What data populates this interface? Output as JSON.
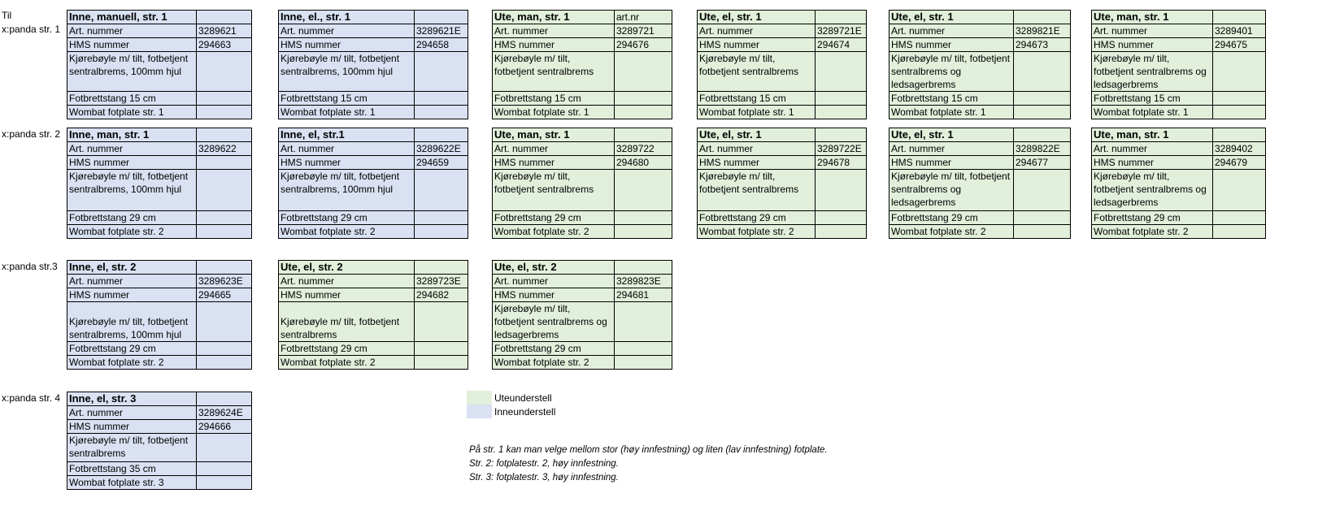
{
  "colors": {
    "inne": "#d9e1f2",
    "ute": "#e2efda"
  },
  "row_labels": {
    "til": "Til",
    "groups": [
      "x:panda str. 1",
      "x:panda str. 2",
      "x:panda str.3",
      "x:panda str. 4"
    ]
  },
  "groups": [
    {
      "cards": [
        {
          "type": "inne",
          "title": "Inne, manuell, str. 1",
          "title_value": "",
          "art_label": "Art. nummer",
          "art": "3289621",
          "hms_label": "HMS nummer",
          "hms": "294663",
          "desc": "Kjørebøyle m/ tilt, fotbetjent sentralbrems, 100mm hjul",
          "fot": "Fotbrettstang 15 cm",
          "wombat": "Wombat fotplate str. 1"
        },
        {
          "type": "inne",
          "title": "Inne, el., str. 1",
          "title_value": "",
          "art_label": "Art. nummer",
          "art": "3289621E",
          "hms_label": "HMS nummer",
          "hms": "294658",
          "desc": "Kjørebøyle m/ tilt, fotbetjent sentralbrems, 100mm hjul",
          "fot": "Fotbrettstang 15 cm",
          "wombat": "Wombat fotplate str. 1"
        },
        {
          "type": "ute",
          "title": "Ute, man, str. 1",
          "title_value": "art.nr",
          "art_label": "Art. nummer",
          "art": "3289721",
          "hms_label": "HMS nummer",
          "hms": "294676",
          "desc": "Kjørebøyle m/ tilt, fotbetjent sentralbrems",
          "fot": "Fotbrettstang 15 cm",
          "wombat": "Wombat fotplate str. 1"
        },
        {
          "type": "ute",
          "title": "Ute, el, str. 1",
          "title_value": "",
          "art_label": "Art. nummer",
          "art": "3289721E",
          "hms_label": "HMS nummer",
          "hms": "294674",
          "desc": "Kjørebøyle m/ tilt, fotbetjent sentralbrems",
          "fot": "Fotbrettstang 15 cm",
          "wombat": "Wombat fotplate str. 1"
        },
        {
          "type": "ute",
          "title": "Ute, el, str. 1",
          "title_value": "",
          "art_label": "Art. nummer",
          "art": "3289821E",
          "hms_label": "HMS nummer",
          "hms": "294673",
          "desc": "Kjørebøyle m/ tilt, fotbetjent sentralbrems og ledsagerbrems",
          "fot": "Fotbrettstang 15 cm",
          "wombat": "Wombat fotplate str. 1"
        },
        {
          "type": "ute",
          "title": "Ute, man, str. 1",
          "title_value": "",
          "art_label": "Art. nummer",
          "art": "3289401",
          "hms_label": "HMS nummer",
          "hms": "294675",
          "desc": "Kjørebøyle m/ tilt, fotbetjent sentralbrems og ledsagerbrems",
          "fot": "Fotbrettstang 15 cm",
          "wombat": "Wombat fotplate str. 1"
        }
      ]
    },
    {
      "cards": [
        {
          "type": "inne",
          "title": "Inne, man, str. 1",
          "title_value": "",
          "art_label": "Art. nummer",
          "art": "3289622",
          "hms_label": "HMS nummer",
          "hms": "",
          "desc": "Kjørebøyle m/ tilt, fotbetjent sentralbrems, 100mm hjul",
          "fot": "Fotbrettstang 29 cm",
          "wombat": "Wombat fotplate str. 2"
        },
        {
          "type": "inne",
          "title": "Inne, el, str.1",
          "title_value": "",
          "art_label": "Art. nummer",
          "art": "3289622E",
          "hms_label": "HMS nummer",
          "hms": "294659",
          "desc": "Kjørebøyle m/ tilt, fotbetjent sentralbrems, 100mm hjul",
          "fot": "Fotbrettstang 29 cm",
          "wombat": "Wombat fotplate str. 2"
        },
        {
          "type": "ute",
          "title": "Ute, man, str. 1",
          "title_value": "",
          "art_label": "Art. nummer",
          "art": "3289722",
          "hms_label": "HMS nummer",
          "hms": "294680",
          "desc": "Kjørebøyle m/ tilt, fotbetjent sentralbrems",
          "fot": "Fotbrettstang 29 cm",
          "wombat": "Wombat fotplate str. 2"
        },
        {
          "type": "ute",
          "title": "Ute, el, str. 1",
          "title_value": "",
          "art_label": "Art. nummer",
          "art": "3289722E",
          "hms_label": "HMS nummer",
          "hms": "294678",
          "desc": "Kjørebøyle m/ tilt, fotbetjent sentralbrems",
          "fot": "Fotbrettstang 29 cm",
          "wombat": "Wombat fotplate str. 2"
        },
        {
          "type": "ute",
          "title": "Ute, el, str. 1",
          "title_value": "",
          "art_label": "Art. nummer",
          "art": "3289822E",
          "hms_label": "HMS nummer",
          "hms": "294677",
          "desc": "Kjørebøyle m/ tilt, fotbetjent sentralbrems og ledsagerbrems",
          "fot": "Fotbrettstang 29 cm",
          "wombat": "Wombat fotplate str. 2"
        },
        {
          "type": "ute",
          "title": "Ute, man, str. 1",
          "title_value": "",
          "art_label": "Art. nummer",
          "art": "3289402",
          "hms_label": "HMS nummer",
          "hms": "294679",
          "desc": "Kjørebøyle m/ tilt, fotbetjent sentralbrems og ledsagerbrems",
          "fot": "Fotbrettstang 29 cm",
          "wombat": "Wombat fotplate str. 2"
        }
      ]
    },
    {
      "cards": [
        {
          "type": "inne",
          "title": "Inne, el, str. 2",
          "title_value": "",
          "art_label": "Art. nummer",
          "art": "3289623E",
          "hms_label": "HMS nummer",
          "hms": "294665",
          "desc": "Kjørebøyle m/ tilt, fotbetjent sentralbrems, 100mm hjul",
          "fot": "Fotbrettstang 29 cm",
          "wombat": "Wombat fotplate str. 2"
        },
        {
          "type": "ute",
          "title": "Ute, el, str. 2",
          "title_value": "",
          "art_label": "Art. nummer",
          "art": "3289723E",
          "hms_label": "HMS nummer",
          "hms": "294682",
          "desc": "Kjørebøyle m/ tilt, fotbetjent sentralbrems",
          "fot": "Fotbrettstang 29 cm",
          "wombat": "Wombat fotplate str. 2"
        },
        {
          "type": "ute",
          "title": "Ute, el, str. 2",
          "title_value": "",
          "art_label": "Art. nummer",
          "art": "3289823E",
          "hms_label": "HMS nummer",
          "hms": "294681",
          "desc": "Kjørebøyle m/ tilt, fotbetjent sentralbrems og ledsagerbrems",
          "fot": "Fotbrettstang 29 cm",
          "wombat": "Wombat fotplate str. 2"
        }
      ]
    },
    {
      "cards": [
        {
          "type": "inne",
          "title": "Inne, el, str. 3",
          "title_value": "",
          "art_label": "Art. nummer",
          "art": "3289624E",
          "hms_label": "HMS nummer",
          "hms": "294666",
          "desc": "Kjørebøyle m/ tilt, fotbetjent sentralbrems",
          "fot": "Fotbrettstang 35 cm",
          "wombat": "Wombat fotplate str. 3"
        }
      ]
    }
  ],
  "legend": {
    "ute": "Uteunderstell",
    "inne": "Inneunderstell"
  },
  "notes": [
    "På str. 1 kan man velge mellom stor (høy innfestning) og liten (lav innfestning) fotplate.",
    "Str. 2: fotplatestr. 2, høy innfestning.",
    "Str. 3: fotplatestr. 3, høy innfestning."
  ]
}
